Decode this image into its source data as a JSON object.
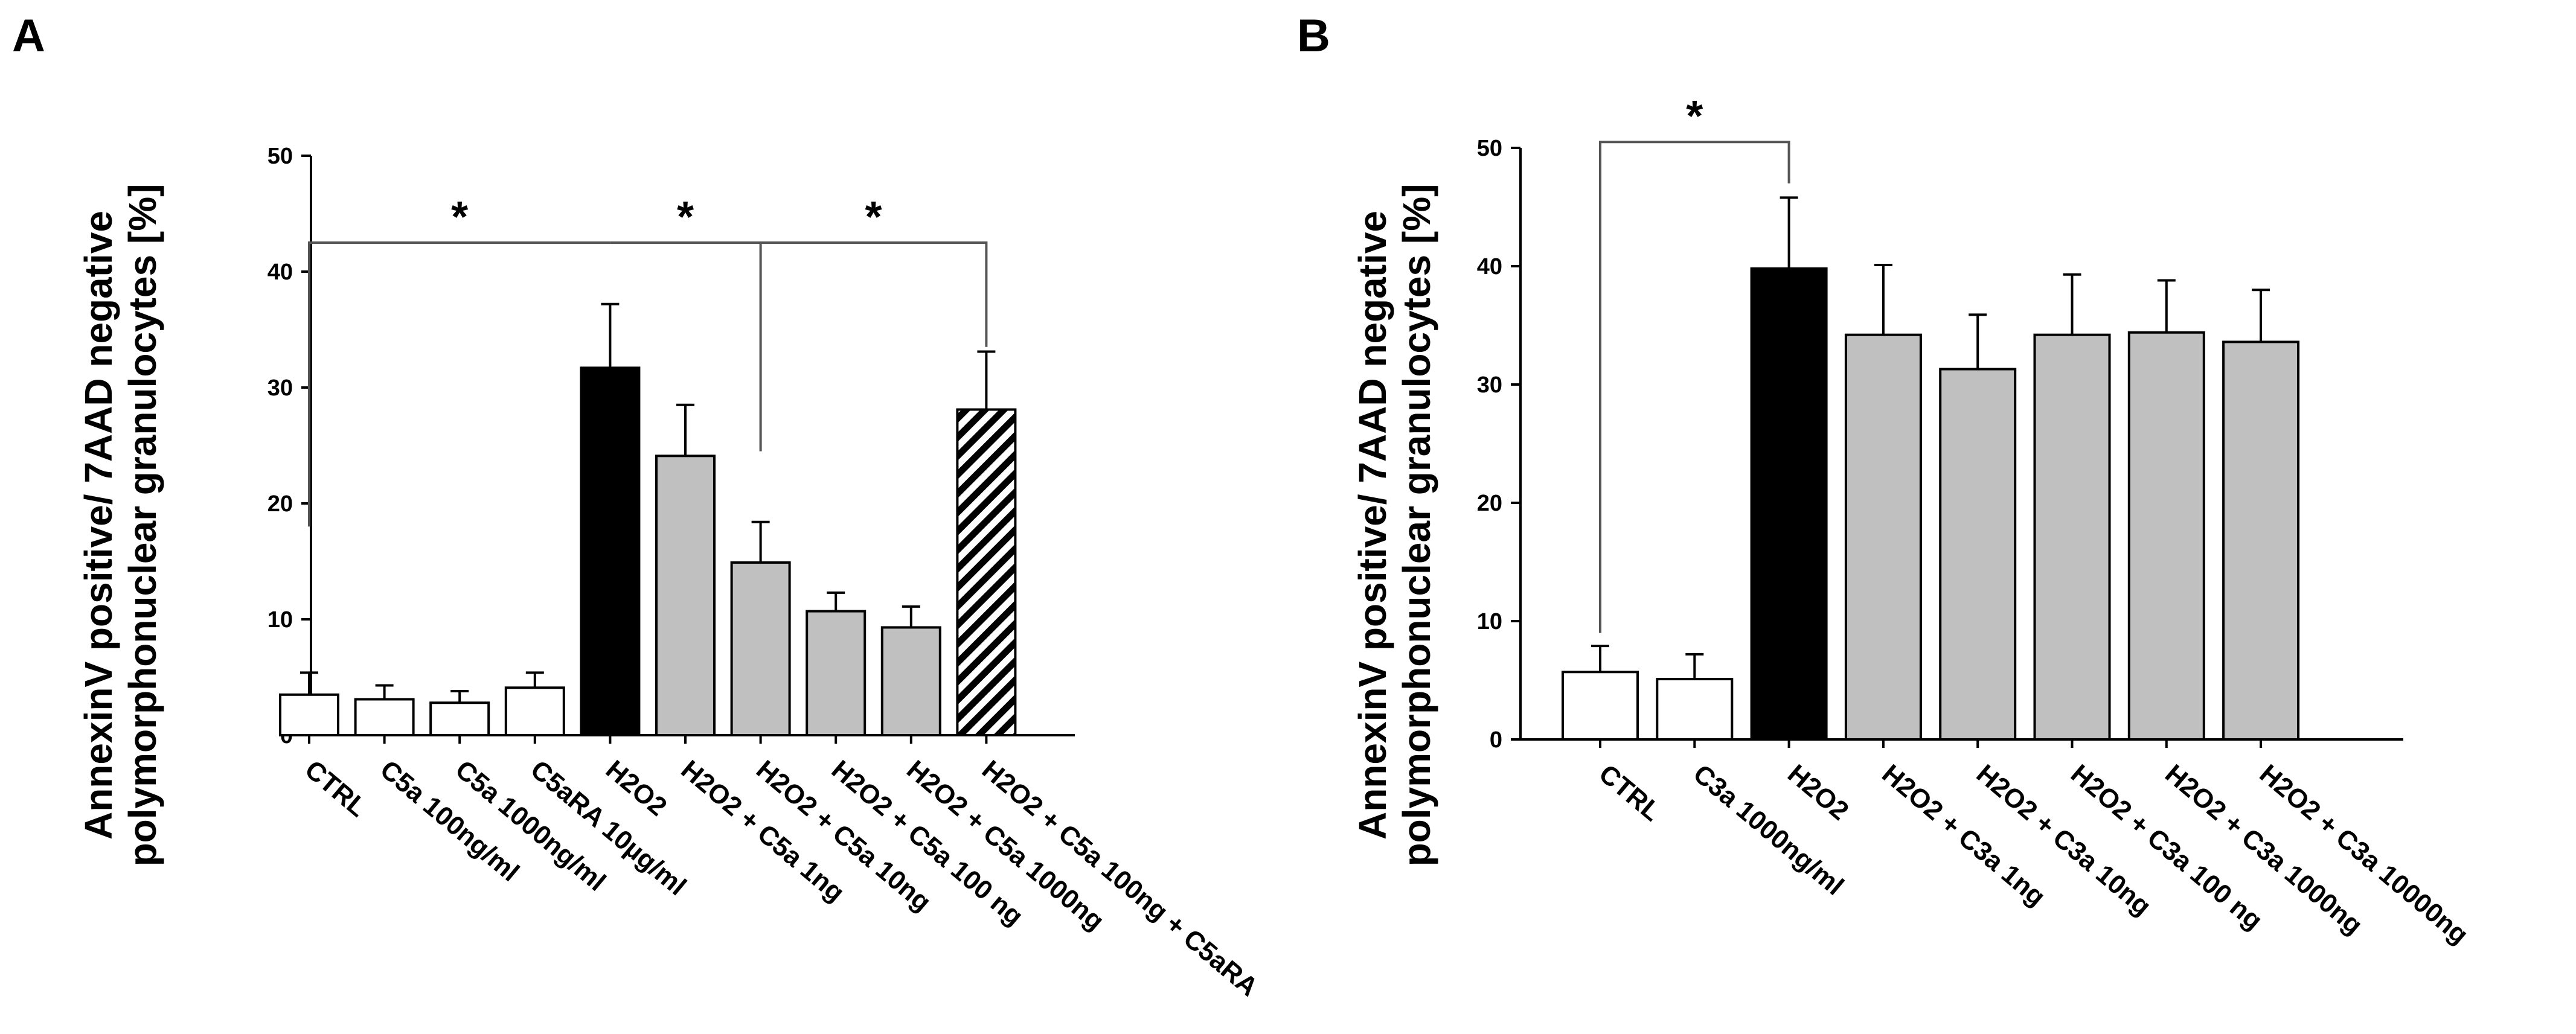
{
  "colors": {
    "white": "#ffffff",
    "black": "#000000",
    "gray": "#c0c0c0",
    "bracket": "#555555"
  },
  "chart_data": [
    {
      "type": "bar",
      "panel": "A",
      "ylabel_lines": [
        "AnnexinV positive/ 7AAD negative",
        "polymorphonuclear granulocytes [%]"
      ],
      "ylim": [
        0,
        50
      ],
      "yticks": [
        0,
        10,
        20,
        30,
        40,
        50
      ],
      "categories": [
        "CTRL",
        "C5a 100ng/ml",
        "C5a 1000ng/ml",
        "C5aRA 10µg/ml",
        "H2O2",
        "H2O2 + C5a 1ng",
        "H2O2 + C5a 10ng",
        "H2O2 + C5a 100 ng",
        "H2O2 + C5a 1000ng",
        "H2O2 + C5a 100ng + C5aRA"
      ],
      "values": [
        3.5,
        3.1,
        2.8,
        4.1,
        31.7,
        24.1,
        14.9,
        10.7,
        9.3,
        28.1
      ],
      "errors": [
        1.9,
        1.2,
        1.0,
        1.3,
        5.5,
        4.4,
        3.5,
        1.6,
        1.8,
        5.0
      ],
      "fills": [
        "white",
        "white",
        "white",
        "white",
        "black",
        "gray",
        "gray",
        "gray",
        "gray",
        "hatch"
      ],
      "significance": [
        {
          "from": 0,
          "to": 4,
          "from_y": 18,
          "to_y": 42.5,
          "bar_y": 42.5,
          "label": "*"
        },
        {
          "from": 4,
          "to": 6,
          "from_y": 42.5,
          "to_y": 24.5,
          "bar_y": 42.5,
          "label": "*"
        },
        {
          "from": 6,
          "to": 9,
          "from_y": 42.5,
          "to_y": 33.5,
          "bar_y": 42.5,
          "label": "*"
        }
      ]
    },
    {
      "type": "bar",
      "panel": "B",
      "ylabel_lines": [
        "AnnexinV positive/ 7AAD negative",
        "polymorphonuclear granulocytes [%]"
      ],
      "ylim": [
        0,
        50
      ],
      "yticks": [
        0,
        10,
        20,
        30,
        40,
        50
      ],
      "categories": [
        "CTRL",
        "C3a 1000ng/ml",
        "H2O2",
        "H2O2 + C3a 1ng",
        "H2O2 + C3a 10ng",
        "H2O2 + C3a 100 ng",
        "H2O2 + C3a 1000ng",
        "H2O2 + C3a 10000ng"
      ],
      "values": [
        5.7,
        5.1,
        39.8,
        34.2,
        31.3,
        34.2,
        34.4,
        33.6
      ],
      "errors": [
        2.2,
        2.1,
        6.0,
        5.9,
        4.6,
        5.1,
        4.4,
        4.4
      ],
      "fills": [
        "white",
        "white",
        "black",
        "gray",
        "gray",
        "gray",
        "gray",
        "gray"
      ],
      "significance": [
        {
          "from": 0,
          "to": 2,
          "from_y": 9,
          "to_y": 47,
          "bar_y": 50.5,
          "label": "*"
        }
      ]
    }
  ]
}
